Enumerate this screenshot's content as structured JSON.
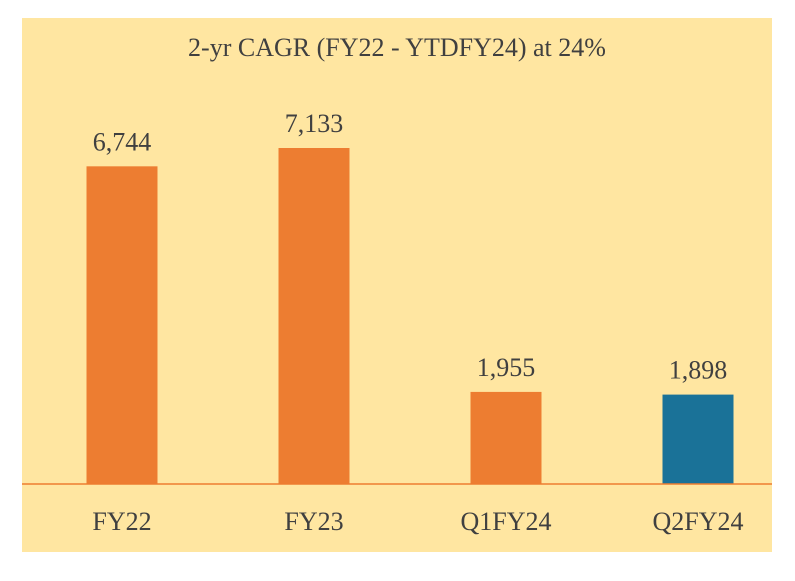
{
  "chart_data": {
    "type": "bar",
    "title": "2-yr CAGR (FY22 - YTDFY24) at 24%",
    "categories": [
      "FY22",
      "FY23",
      "Q1FY24",
      "Q2FY24"
    ],
    "values": [
      6744,
      7133,
      1955,
      1898
    ],
    "value_labels": [
      "6,744",
      "7,133",
      "1,955",
      "1,898"
    ],
    "colors": [
      "#ed7d31",
      "#ed7d31",
      "#ed7d31",
      "#1a7298"
    ],
    "background": "#ffe6a1",
    "baseline_color": "#ed7d31"
  }
}
